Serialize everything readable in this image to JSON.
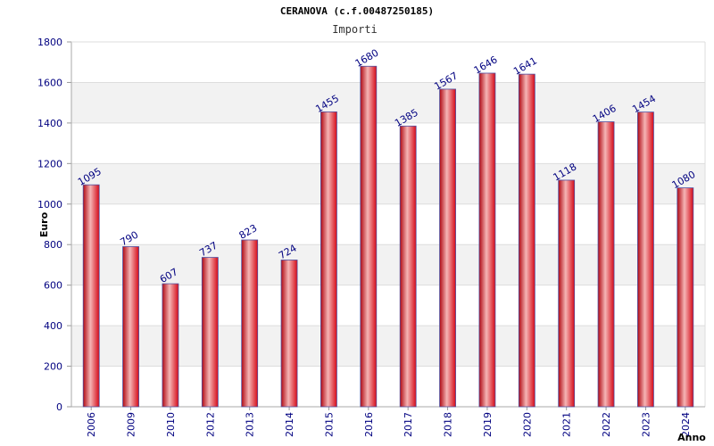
{
  "chart_data": {
    "type": "bar",
    "title": "CERANOVA (c.f.00487250185)",
    "subtitle": "Importi",
    "xlabel": "Anno",
    "ylabel": "Euro",
    "categories": [
      "2006",
      "2009",
      "2010",
      "2012",
      "2013",
      "2014",
      "2015",
      "2016",
      "2017",
      "2018",
      "2019",
      "2020",
      "2021",
      "2022",
      "2023",
      "2024"
    ],
    "series": [
      {
        "name": "Importi",
        "values": [
          1095,
          790,
          607,
          737,
          823,
          724,
          1455,
          1680,
          1385,
          1567,
          1646,
          1641,
          1118,
          1406,
          1454,
          1080
        ]
      }
    ],
    "ylim": [
      0,
      1800
    ],
    "yticks": [
      0,
      200,
      400,
      600,
      800,
      1000,
      1200,
      1400,
      1600,
      1800
    ],
    "grid": true,
    "colors": {
      "bar": "#e8101e",
      "bar_highlight": "#f5b5b5",
      "bar_edge": "#5050a0",
      "label": "#000080",
      "band": "#f2f2f2",
      "grid": "#dddddd"
    }
  }
}
